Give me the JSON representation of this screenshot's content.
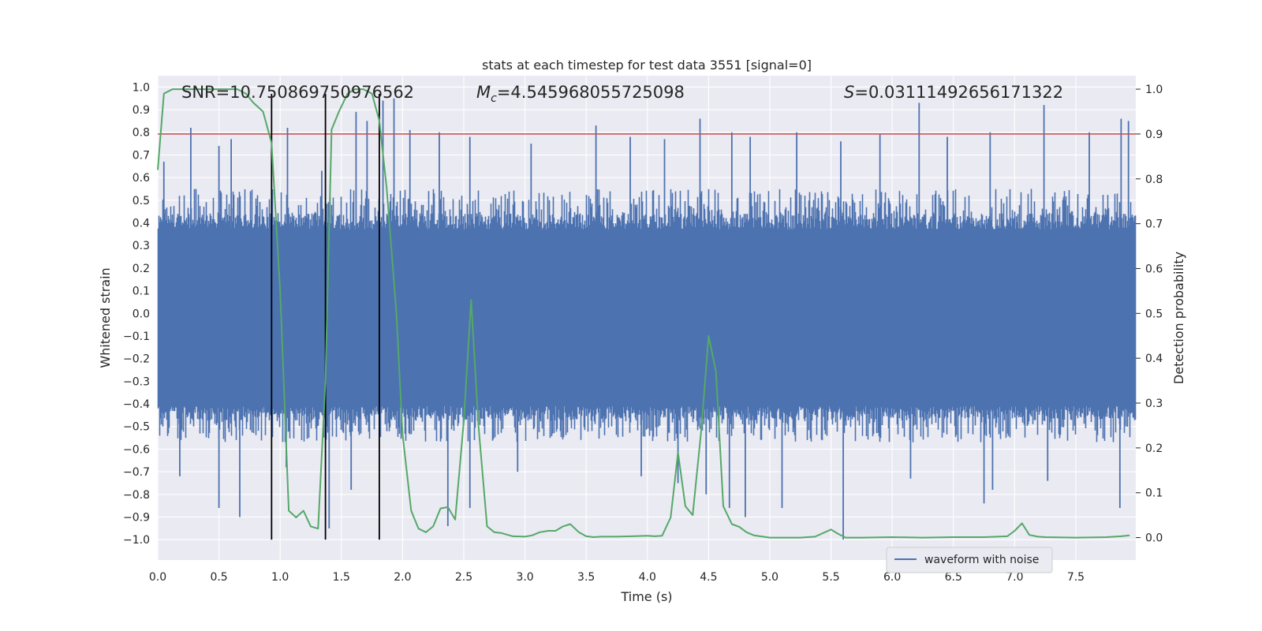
{
  "chart_data": {
    "type": "line",
    "title": "stats at each timestep for test data 3551 [signal=0]",
    "xlabel": "Time (s)",
    "ylabel_left": "Whitened strain",
    "ylabel_right": "Detection probability",
    "xlim": [
      0.0,
      7.99
    ],
    "ylim_left": [
      -1.09,
      1.05
    ],
    "ylim_right": [
      -0.05,
      1.03
    ],
    "x_ticks": [
      "0.0",
      "0.5",
      "1.0",
      "1.5",
      "2.0",
      "2.5",
      "3.0",
      "3.5",
      "4.0",
      "4.5",
      "5.0",
      "5.5",
      "6.0",
      "6.5",
      "7.0",
      "7.5"
    ],
    "y_left_ticks": [
      "−1.0",
      "−0.9",
      "−0.8",
      "−0.7",
      "−0.6",
      "−0.5",
      "−0.4",
      "−0.3",
      "−0.2",
      "−0.1",
      "0.0",
      "0.1",
      "0.2",
      "0.3",
      "0.4",
      "0.5",
      "0.6",
      "0.7",
      "0.8",
      "0.9",
      "1.0"
    ],
    "y_right_ticks": [
      "0.0",
      "0.1",
      "0.2",
      "0.3",
      "0.4",
      "0.5",
      "0.6",
      "0.7",
      "0.8",
      "0.9",
      "1.0"
    ],
    "grid": true,
    "legend": {
      "placement": "lower-right",
      "entries": [
        "waveform with noise"
      ]
    },
    "annotations": {
      "snr": "SNR=10.750869750976562",
      "mc_symbol": "M",
      "mc_subscript": "c",
      "mc_value": "=4.545968055725098",
      "s_symbol": "S",
      "s_value": "=0.03111492656171322"
    },
    "threshold": {
      "axis": "right",
      "value": 0.9,
      "color": "#c44e52"
    },
    "vertical_lines": {
      "x": [
        0.93,
        1.37,
        1.81
      ],
      "y_range_left": [
        -1.0,
        0.97
      ],
      "color": "#000000"
    },
    "waveform": {
      "name": "waveform with noise",
      "color": "#4c72b0",
      "samples_per_second": 2048,
      "band_low": -0.41,
      "band_high": 0.37,
      "spikes": [
        {
          "x": 0.27,
          "y": 0.82
        },
        {
          "x": 0.5,
          "y": 0.74
        },
        {
          "x": 0.6,
          "y": 0.77
        },
        {
          "x": 0.05,
          "y": 0.67
        },
        {
          "x": 1.06,
          "y": 0.82
        },
        {
          "x": 1.34,
          "y": 0.63
        },
        {
          "x": 1.62,
          "y": 0.89
        },
        {
          "x": 1.71,
          "y": 0.85
        },
        {
          "x": 1.84,
          "y": 0.94
        },
        {
          "x": 1.93,
          "y": 0.95
        },
        {
          "x": 2.06,
          "y": 0.81
        },
        {
          "x": 2.3,
          "y": 0.8
        },
        {
          "x": 2.55,
          "y": 0.78
        },
        {
          "x": 3.05,
          "y": 0.75
        },
        {
          "x": 3.58,
          "y": 0.83
        },
        {
          "x": 3.86,
          "y": 0.78
        },
        {
          "x": 4.14,
          "y": 0.77
        },
        {
          "x": 4.43,
          "y": 0.86
        },
        {
          "x": 4.69,
          "y": 0.8
        },
        {
          "x": 4.84,
          "y": 0.78
        },
        {
          "x": 5.22,
          "y": 0.8
        },
        {
          "x": 5.58,
          "y": 0.76
        },
        {
          "x": 5.9,
          "y": 0.79
        },
        {
          "x": 6.22,
          "y": 0.93
        },
        {
          "x": 6.45,
          "y": 0.78
        },
        {
          "x": 6.8,
          "y": 0.8
        },
        {
          "x": 7.24,
          "y": 0.92
        },
        {
          "x": 7.61,
          "y": 0.8
        },
        {
          "x": 7.87,
          "y": 0.86
        },
        {
          "x": 7.93,
          "y": 0.85
        },
        {
          "x": 0.5,
          "y": -0.86
        },
        {
          "x": 0.67,
          "y": -0.9
        },
        {
          "x": 0.18,
          "y": -0.72
        },
        {
          "x": 1.05,
          "y": -0.68
        },
        {
          "x": 1.4,
          "y": -0.95
        },
        {
          "x": 1.58,
          "y": -0.78
        },
        {
          "x": 2.37,
          "y": -0.94
        },
        {
          "x": 2.55,
          "y": -0.86
        },
        {
          "x": 2.94,
          "y": -0.7
        },
        {
          "x": 3.95,
          "y": -0.72
        },
        {
          "x": 4.25,
          "y": -0.75
        },
        {
          "x": 4.48,
          "y": -0.8
        },
        {
          "x": 4.67,
          "y": -0.86
        },
        {
          "x": 4.8,
          "y": -0.9
        },
        {
          "x": 5.1,
          "y": -0.86
        },
        {
          "x": 5.6,
          "y": -1.0
        },
        {
          "x": 6.15,
          "y": -0.73
        },
        {
          "x": 6.75,
          "y": -0.84
        },
        {
          "x": 6.82,
          "y": -0.78
        },
        {
          "x": 7.27,
          "y": -0.74
        },
        {
          "x": 7.86,
          "y": -0.86
        }
      ]
    },
    "probability": {
      "color": "#55a868",
      "x": [
        0.0,
        0.05,
        0.12,
        0.2,
        0.3,
        0.4,
        0.5,
        0.6,
        0.65,
        0.72,
        0.78,
        0.86,
        0.93,
        1.0,
        1.07,
        1.13,
        1.19,
        1.25,
        1.31,
        1.37,
        1.42,
        1.48,
        1.55,
        1.61,
        1.68,
        1.75,
        1.81,
        1.87,
        1.95,
        2.0,
        2.07,
        2.13,
        2.19,
        2.25,
        2.31,
        2.37,
        2.43,
        2.5,
        2.56,
        2.62,
        2.69,
        2.75,
        2.81,
        2.9,
        3.0,
        3.06,
        3.12,
        3.19,
        3.25,
        3.31,
        3.37,
        3.44,
        3.5,
        3.56,
        3.62,
        3.75,
        3.87,
        4.0,
        4.06,
        4.12,
        4.19,
        4.25,
        4.31,
        4.37,
        4.44,
        4.5,
        4.56,
        4.62,
        4.69,
        4.75,
        4.81,
        4.87,
        5.0,
        5.12,
        5.25,
        5.37,
        5.5,
        5.56,
        5.62,
        5.75,
        6.0,
        6.25,
        6.5,
        6.75,
        6.94,
        7.0,
        7.06,
        7.12,
        7.19,
        7.25,
        7.5,
        7.75,
        7.87,
        7.94
      ],
      "y": [
        0.82,
        0.99,
        1.0,
        1.0,
        1.0,
        1.0,
        1.0,
        1.0,
        1.0,
        0.99,
        0.97,
        0.95,
        0.88,
        0.55,
        0.06,
        0.045,
        0.06,
        0.025,
        0.02,
        0.35,
        0.91,
        0.95,
        0.99,
        1.0,
        1.0,
        0.99,
        0.93,
        0.78,
        0.5,
        0.23,
        0.06,
        0.02,
        0.012,
        0.025,
        0.065,
        0.068,
        0.04,
        0.26,
        0.53,
        0.25,
        0.025,
        0.012,
        0.01,
        0.003,
        0.002,
        0.005,
        0.012,
        0.015,
        0.015,
        0.025,
        0.03,
        0.012,
        0.003,
        0.001,
        0.002,
        0.002,
        0.003,
        0.004,
        0.003,
        0.004,
        0.045,
        0.19,
        0.07,
        0.05,
        0.24,
        0.45,
        0.37,
        0.07,
        0.03,
        0.024,
        0.012,
        0.005,
        0.0,
        0.0,
        0.0,
        0.002,
        0.018,
        0.008,
        0.0,
        0.0,
        0.001,
        0.0,
        0.001,
        0.001,
        0.003,
        0.015,
        0.032,
        0.006,
        0.002,
        0.001,
        0.0,
        0.001,
        0.003,
        0.005
      ]
    }
  }
}
